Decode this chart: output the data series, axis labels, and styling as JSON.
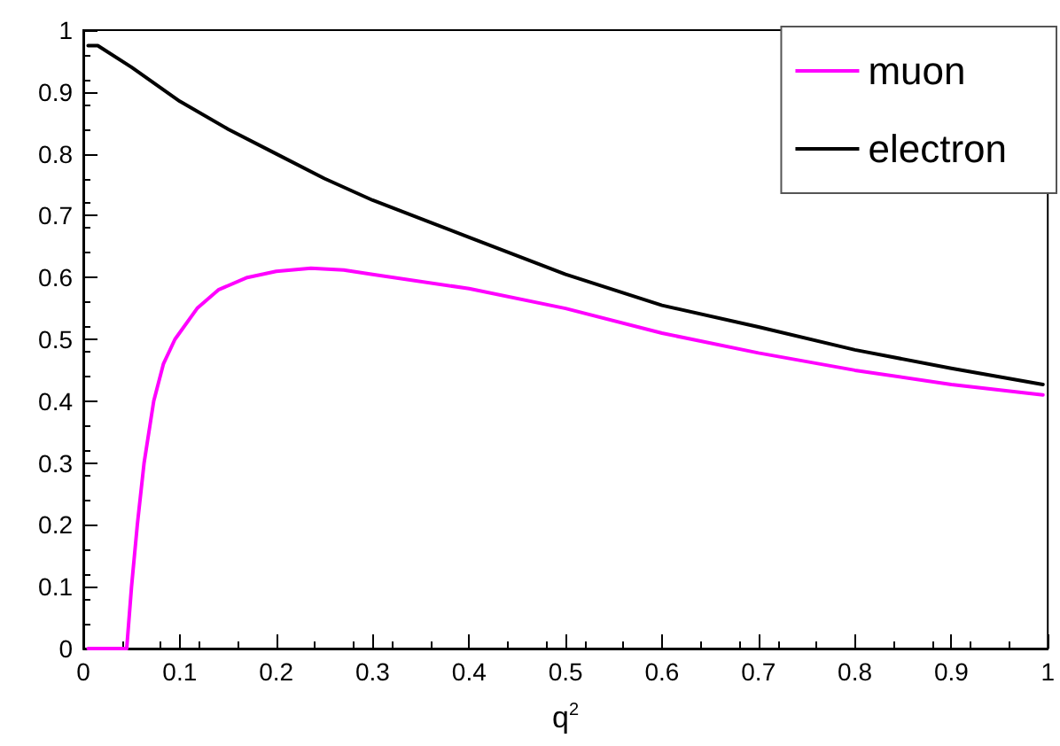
{
  "chart_data": {
    "type": "line",
    "xlabel": "q$^{2}$",
    "xlim": [
      0,
      1
    ],
    "xticks": [
      0,
      0.1,
      0.2,
      0.3,
      0.4,
      0.5,
      0.6,
      0.7,
      0.8,
      0.9,
      1
    ],
    "ylim": [
      0,
      1
    ],
    "yticks": [
      0,
      0.1,
      0.2,
      0.3,
      0.4,
      0.5,
      0.6,
      0.7,
      0.8,
      0.9,
      1
    ],
    "grid": false,
    "legend": "top right",
    "marker": "none",
    "line_style": "solid",
    "series": [
      {
        "name": "muon",
        "color": "#ff00ff",
        "x": [
          0.005,
          0.045,
          0.05,
          0.056,
          0.063,
          0.073,
          0.083,
          0.095,
          0.118,
          0.14,
          0.17,
          0.2,
          0.236,
          0.27,
          0.3,
          0.4,
          0.5,
          0.6,
          0.7,
          0.8,
          0.9,
          0.995
        ],
        "values": [
          0,
          0,
          0.1,
          0.2,
          0.3,
          0.4,
          0.46,
          0.5,
          0.55,
          0.58,
          0.6,
          0.61,
          0.615,
          0.612,
          0.605,
          0.582,
          0.55,
          0.51,
          0.478,
          0.45,
          0.427,
          0.41
        ]
      },
      {
        "name": "electron",
        "color": "#000000",
        "x": [
          0.005,
          0.015,
          0.05,
          0.1,
          0.15,
          0.2,
          0.25,
          0.3,
          0.4,
          0.5,
          0.6,
          0.7,
          0.8,
          0.9,
          0.995
        ],
        "values": [
          0.975,
          0.975,
          0.94,
          0.885,
          0.84,
          0.8,
          0.76,
          0.725,
          0.665,
          0.605,
          0.555,
          0.52,
          0.483,
          0.453,
          0.427
        ]
      }
    ]
  }
}
